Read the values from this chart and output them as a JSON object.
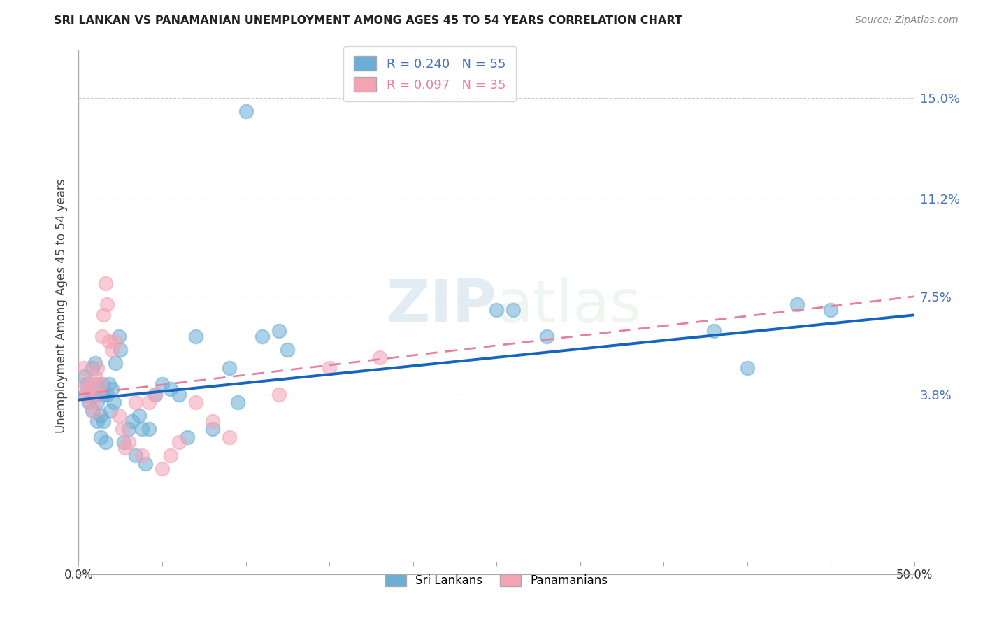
{
  "title": "SRI LANKAN VS PANAMANIAN UNEMPLOYMENT AMONG AGES 45 TO 54 YEARS CORRELATION CHART",
  "source": "Source: ZipAtlas.com",
  "ylabel": "Unemployment Among Ages 45 to 54 years",
  "ytick_labels": [
    "15.0%",
    "11.2%",
    "7.5%",
    "3.8%"
  ],
  "ytick_values": [
    0.15,
    0.112,
    0.075,
    0.038
  ],
  "xlim": [
    0.0,
    0.5
  ],
  "ylim": [
    -0.025,
    0.168
  ],
  "sri_lankans_R": 0.24,
  "sri_lankans_N": 55,
  "panamanians_R": 0.097,
  "panamanians_N": 35,
  "legend_label_sri": "Sri Lankans",
  "legend_label_pan": "Panamanians",
  "blue_color": "#6baed6",
  "pink_color": "#f4a3b5",
  "trendline_blue": "#1565c0",
  "trendline_pink": "#e87fa0",
  "sri_x": [
    0.003,
    0.004,
    0.005,
    0.006,
    0.007,
    0.008,
    0.008,
    0.009,
    0.01,
    0.01,
    0.011,
    0.011,
    0.012,
    0.013,
    0.013,
    0.014,
    0.015,
    0.015,
    0.016,
    0.017,
    0.018,
    0.019,
    0.02,
    0.021,
    0.022,
    0.024,
    0.025,
    0.027,
    0.03,
    0.032,
    0.034,
    0.036,
    0.038,
    0.04,
    0.042,
    0.046,
    0.05,
    0.055,
    0.06,
    0.065,
    0.07,
    0.08,
    0.09,
    0.095,
    0.1,
    0.11,
    0.12,
    0.125,
    0.25,
    0.26,
    0.28,
    0.38,
    0.4,
    0.43,
    0.45
  ],
  "sri_y": [
    0.045,
    0.038,
    0.042,
    0.035,
    0.04,
    0.048,
    0.032,
    0.038,
    0.042,
    0.05,
    0.035,
    0.028,
    0.038,
    0.03,
    0.022,
    0.042,
    0.038,
    0.028,
    0.02,
    0.038,
    0.042,
    0.032,
    0.04,
    0.035,
    0.05,
    0.06,
    0.055,
    0.02,
    0.025,
    0.028,
    0.015,
    0.03,
    0.025,
    0.012,
    0.025,
    0.038,
    0.042,
    0.04,
    0.038,
    0.022,
    0.06,
    0.025,
    0.048,
    0.035,
    0.145,
    0.06,
    0.062,
    0.055,
    0.07,
    0.07,
    0.06,
    0.062,
    0.048,
    0.072,
    0.07
  ],
  "pan_x": [
    0.003,
    0.004,
    0.005,
    0.006,
    0.007,
    0.008,
    0.009,
    0.01,
    0.011,
    0.012,
    0.013,
    0.014,
    0.015,
    0.016,
    0.017,
    0.018,
    0.02,
    0.022,
    0.024,
    0.026,
    0.028,
    0.03,
    0.034,
    0.038,
    0.042,
    0.046,
    0.05,
    0.055,
    0.06,
    0.07,
    0.08,
    0.09,
    0.12,
    0.15,
    0.18
  ],
  "pan_y": [
    0.048,
    0.042,
    0.038,
    0.04,
    0.035,
    0.042,
    0.032,
    0.045,
    0.048,
    0.038,
    0.042,
    0.06,
    0.068,
    0.08,
    0.072,
    0.058,
    0.055,
    0.058,
    0.03,
    0.025,
    0.018,
    0.02,
    0.035,
    0.015,
    0.035,
    0.038,
    0.01,
    0.015,
    0.02,
    0.035,
    0.028,
    0.022,
    0.038,
    0.048,
    0.052
  ],
  "watermark_zip": "ZIP",
  "watermark_atlas": "atlas",
  "background_color": "#ffffff",
  "grid_color": "#cccccc"
}
